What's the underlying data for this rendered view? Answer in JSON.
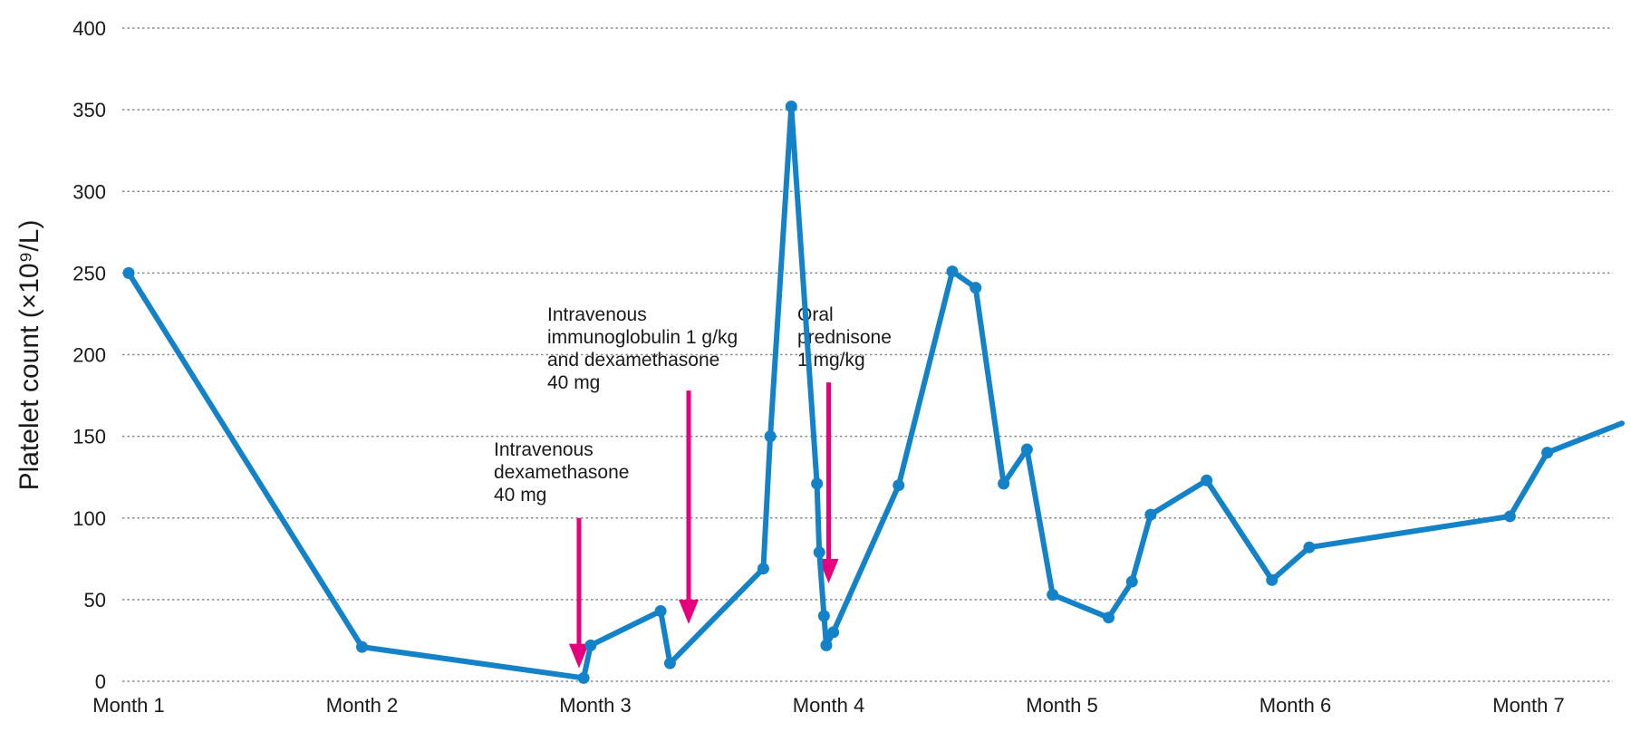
{
  "chart_data": {
    "type": "line",
    "ylabel": "Platelet count (×10⁹/L)",
    "ylim": [
      0,
      400
    ],
    "yticks": [
      0,
      50,
      100,
      150,
      200,
      250,
      300,
      350,
      400
    ],
    "grid": "horizontal dotted",
    "x_ticks": [
      {
        "label": "Month 1",
        "month": 1
      },
      {
        "label": "Month 2",
        "month": 2
      },
      {
        "label": "Month 3",
        "month": 3
      },
      {
        "label": "Month 4",
        "month": 4
      },
      {
        "label": "Month 5",
        "month": 5
      },
      {
        "label": "Month 6",
        "month": 6
      },
      {
        "label": "Month 7",
        "month": 7
      }
    ],
    "xlim": [
      1,
      7.4
    ],
    "series": [
      {
        "color": "#1382c8",
        "points": [
          {
            "month": 1.0,
            "value": 250
          },
          {
            "month": 2.0,
            "value": 21
          },
          {
            "month": 2.95,
            "value": 2
          },
          {
            "month": 2.98,
            "value": 22
          },
          {
            "month": 3.28,
            "value": 43
          },
          {
            "month": 3.32,
            "value": 11
          },
          {
            "month": 3.72,
            "value": 69
          },
          {
            "month": 3.75,
            "value": 150
          },
          {
            "month": 3.84,
            "value": 352
          },
          {
            "month": 3.95,
            "value": 121
          },
          {
            "month": 3.96,
            "value": 79
          },
          {
            "month": 3.98,
            "value": 40
          },
          {
            "month": 3.99,
            "value": 22
          },
          {
            "month": 4.02,
            "value": 30
          },
          {
            "month": 4.3,
            "value": 120
          },
          {
            "month": 4.53,
            "value": 251
          },
          {
            "month": 4.63,
            "value": 241
          },
          {
            "month": 4.75,
            "value": 121
          },
          {
            "month": 4.85,
            "value": 142
          },
          {
            "month": 4.96,
            "value": 53
          },
          {
            "month": 5.2,
            "value": 39
          },
          {
            "month": 5.3,
            "value": 61
          },
          {
            "month": 5.38,
            "value": 102
          },
          {
            "month": 5.62,
            "value": 123
          },
          {
            "month": 5.9,
            "value": 62
          },
          {
            "month": 6.06,
            "value": 82
          },
          {
            "month": 6.92,
            "value": 101
          },
          {
            "month": 7.08,
            "value": 140
          },
          {
            "month": 7.4,
            "value": 158,
            "marker": false
          }
        ]
      }
    ],
    "annotations": [
      {
        "lines": [
          "Intravenous",
          "dexamethasone",
          "40 mg"
        ],
        "arrow_month": 2.93,
        "arrow_from": 100,
        "arrow_to": 8,
        "color": "#e6007e"
      },
      {
        "lines": [
          "Intravenous",
          "immunoglobulin 1 g/kg",
          "and dexamethasone",
          "40 mg"
        ],
        "arrow_month": 3.4,
        "arrow_from": 178,
        "arrow_to": 35,
        "color": "#e6007e"
      },
      {
        "lines": [
          "Oral",
          "prednisone",
          "1 mg/kg"
        ],
        "arrow_month": 4.0,
        "arrow_from": 183,
        "arrow_to": 60,
        "color": "#e6007e"
      }
    ]
  }
}
